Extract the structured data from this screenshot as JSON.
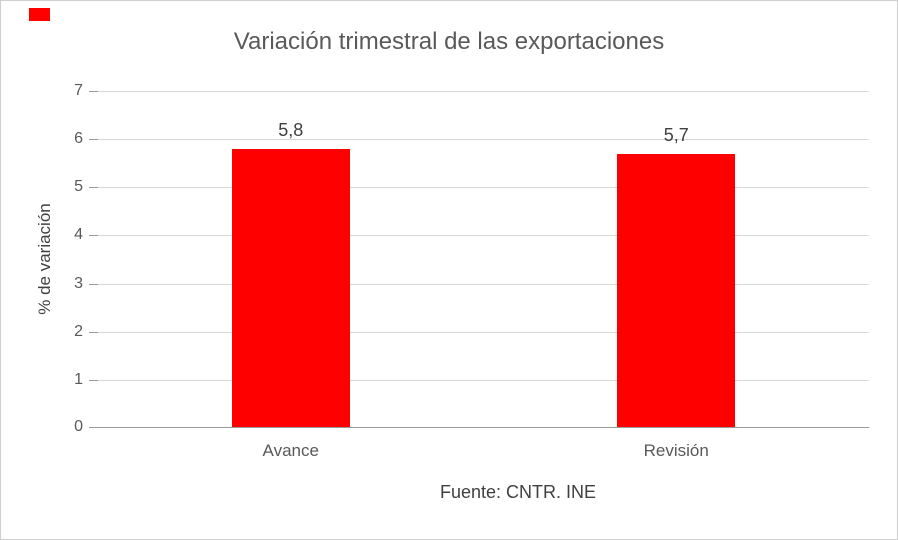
{
  "chart_data": {
    "type": "bar",
    "title": "Variación trimestral de las exportaciones",
    "categories": [
      "Avance",
      "Revisión"
    ],
    "values": [
      5.8,
      5.7
    ],
    "value_labels": [
      "5,8",
      "5,7"
    ],
    "xlabel": "",
    "ylabel": "% de variación",
    "ylim": [
      0,
      7
    ],
    "yticks": [
      0,
      1,
      2,
      3,
      4,
      5,
      6,
      7
    ],
    "grid": "horizontal-gridlines-on",
    "legend": "none",
    "bar_color": "#ff0000",
    "source": "Fuente: CNTR. INE"
  },
  "decorations": {
    "corner_marker_color": "#ff0000"
  },
  "colors": {
    "title_text": "#595959",
    "axis_text": "#595959",
    "value_text": "#404040",
    "gridline": "#d9d9d9",
    "axis_line": "#9b9b9b",
    "frame_border": "#cfcfcf",
    "background": "#ffffff"
  }
}
